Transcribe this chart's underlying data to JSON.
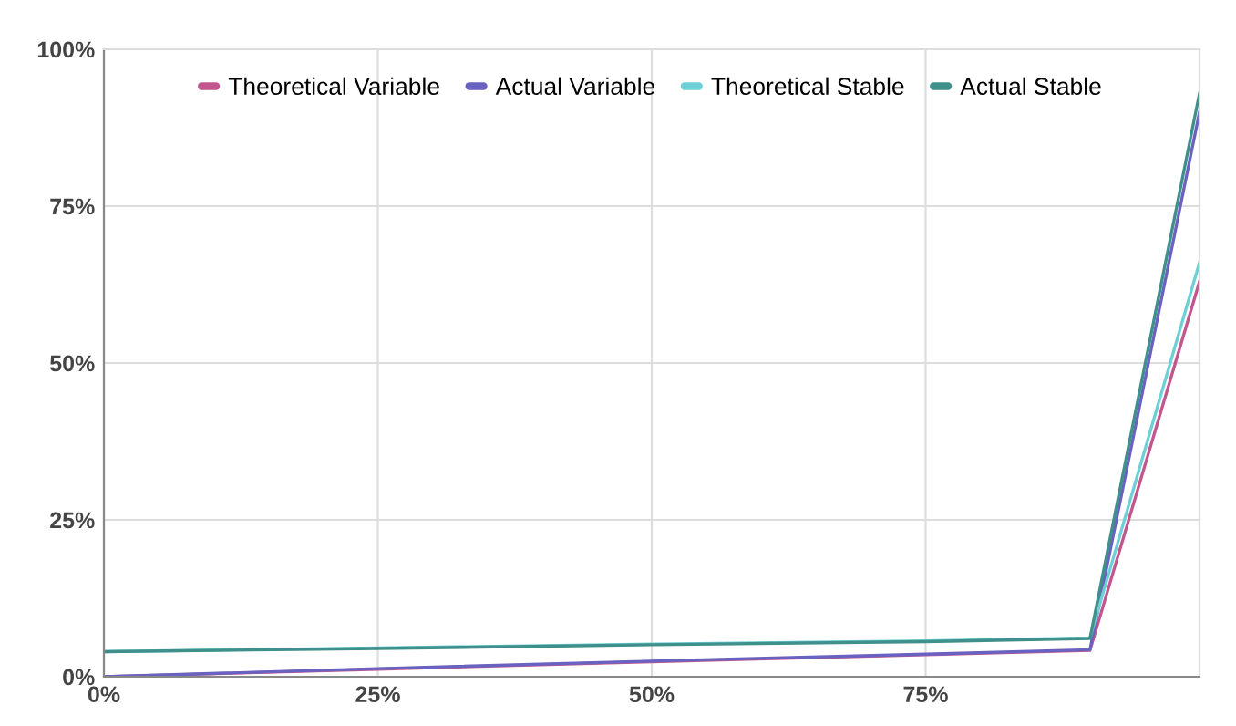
{
  "chart_data": {
    "type": "line",
    "x": [
      0,
      25,
      50,
      75,
      90,
      100
    ],
    "series": [
      {
        "name": "Theoretical Variable",
        "color": "#c2578f",
        "values": [
          0,
          1.2,
          2.4,
          3.5,
          4.2,
          63
        ]
      },
      {
        "name": "Actual Variable",
        "color": "#6a62c0",
        "values": [
          0,
          1.3,
          2.5,
          3.6,
          4.3,
          90
        ]
      },
      {
        "name": "Theoretical Stable",
        "color": "#6fcfd6",
        "values": [
          4,
          4.6,
          5.2,
          5.7,
          6.2,
          66
        ]
      },
      {
        "name": "Actual Stable",
        "color": "#3f8f8a",
        "values": [
          4,
          4.5,
          5.1,
          5.6,
          6.1,
          93
        ]
      }
    ],
    "xlim": [
      0,
      100
    ],
    "xticks": [
      {
        "value": 0,
        "label": "0%"
      },
      {
        "value": 25,
        "label": "25%"
      },
      {
        "value": 50,
        "label": "50%"
      },
      {
        "value": 75,
        "label": "75%"
      }
    ],
    "ylim": [
      0,
      100
    ],
    "yticks": [
      {
        "value": 0,
        "label": "0%"
      },
      {
        "value": 25,
        "label": "25%"
      },
      {
        "value": 50,
        "label": "50%"
      },
      {
        "value": 75,
        "label": "75%"
      },
      {
        "value": 100,
        "label": "100%"
      }
    ],
    "grid": true,
    "legend": "top"
  }
}
